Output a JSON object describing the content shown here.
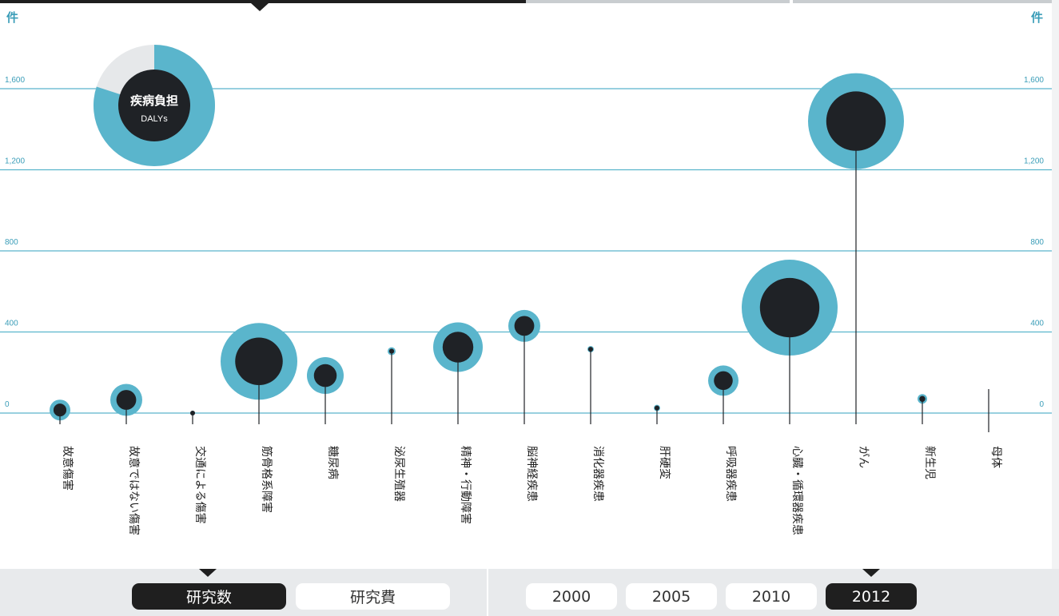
{
  "chart_data": {
    "type": "scatter",
    "y_unit_label": "件",
    "y_ticks": [
      0,
      400,
      800,
      1200,
      1600
    ],
    "y_tick_labels": [
      "0",
      "400",
      "800",
      "1,200",
      "1,600"
    ],
    "ylim": [
      0,
      1700
    ],
    "legend": {
      "title": "疾病負担",
      "subtitle": "DALYs",
      "position": "top-left"
    },
    "categories": [
      "故意傷害",
      "故意ではない傷害",
      "交通による傷害",
      "筋骨格系障害",
      "糖尿病",
      "泌尿生殖器",
      "精神・行動障害",
      "脳神経疾患",
      "消化器疾患",
      "肝硬変",
      "呼吸器疾患",
      "心臓・循環器疾患",
      "がん",
      "新生児",
      "母体"
    ],
    "values": [
      15,
      65,
      0,
      255,
      185,
      305,
      325,
      430,
      315,
      25,
      160,
      520,
      1440,
      70,
      0
    ],
    "dalys": [
      13,
      20,
      3,
      48,
      23,
      5,
      31,
      20,
      4,
      4,
      19,
      60,
      60,
      6,
      0
    ],
    "colors": {
      "outer": "#5ab5cc",
      "inner": "#1f2226",
      "grid": "#5ab5cc",
      "stem": "#1f2226"
    }
  },
  "controls": {
    "metric_tabs": [
      {
        "label": "研究数",
        "active": true
      },
      {
        "label": "研究費",
        "active": false
      }
    ],
    "year_tabs": [
      {
        "label": "2000",
        "active": false
      },
      {
        "label": "2005",
        "active": false
      },
      {
        "label": "2010",
        "active": false
      },
      {
        "label": "2012",
        "active": true
      }
    ]
  }
}
